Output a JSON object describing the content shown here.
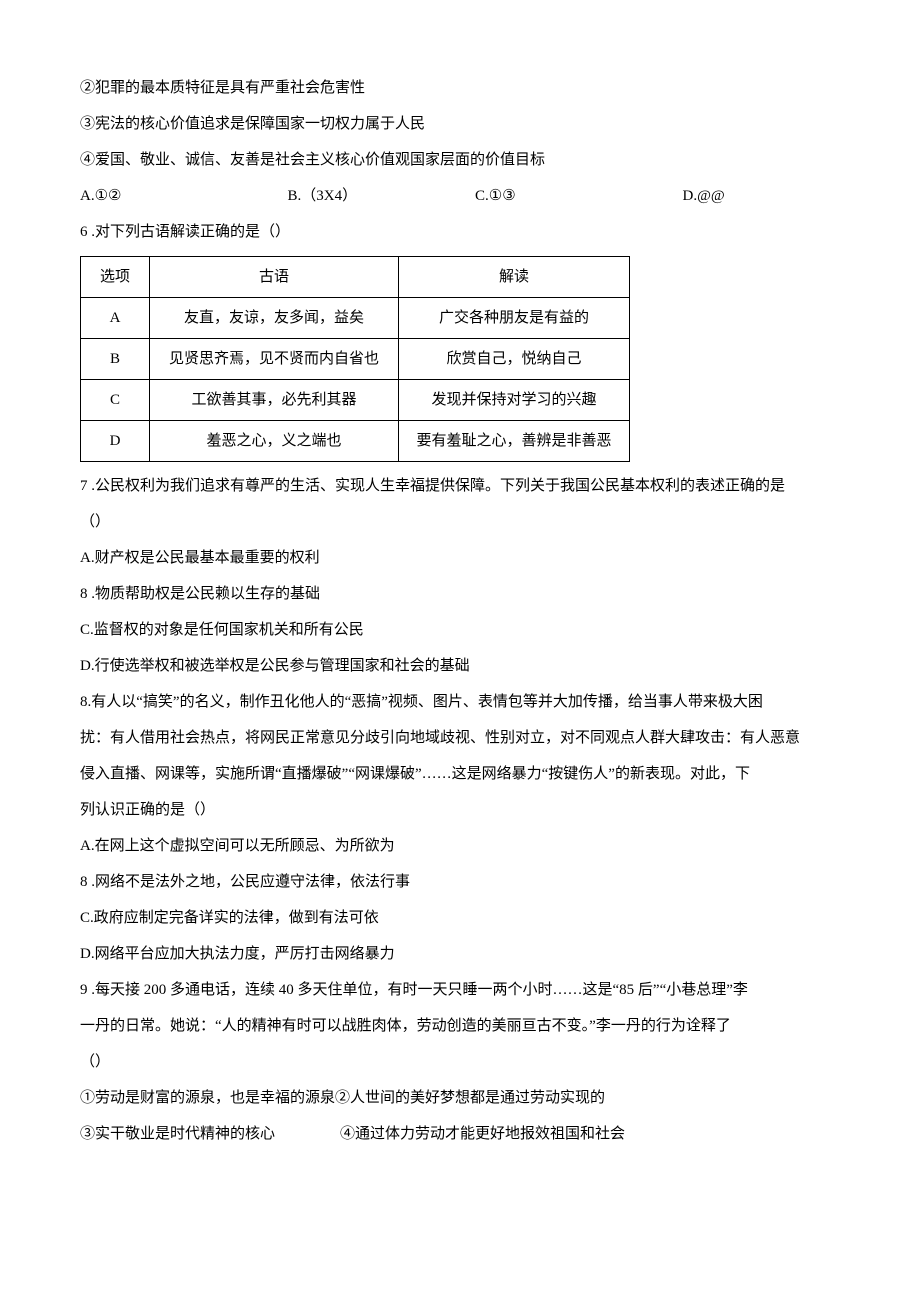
{
  "lines": {
    "l1": "②犯罪的最本质特征是具有严重社会危害性",
    "l2": "③宪法的核心价值追求是保障国家一切权力属于人民",
    "l3": "④爱国、敬业、诚信、友善是社会主义核心价值观国家层面的价值目标"
  },
  "choices5": {
    "a": "A.①②",
    "b": "B.（3X4）",
    "c": "C.①③",
    "d": "D.@@"
  },
  "q6": {
    "stem": "6 .对下列古语解读正确的是（）",
    "header": {
      "opt": "选项",
      "guyu": "古语",
      "jiedu": "解读"
    },
    "rows": [
      {
        "opt": "A",
        "guyu": "友直，友谅，友多闻，益矣",
        "jiedu": "广交各种朋友是有益的"
      },
      {
        "opt": "B",
        "guyu": "见贤思齐焉，见不贤而内自省也",
        "jiedu": "欣赏自己，悦纳自己"
      },
      {
        "opt": "C",
        "guyu": "工欲善其事，必先利其器",
        "jiedu": "发现并保持对学习的兴趣"
      },
      {
        "opt": "D",
        "guyu": "羞恶之心，义之端也",
        "jiedu": "要有羞耻之心，善辨是非善恶"
      }
    ]
  },
  "q7": {
    "stem1": "7 .公民权利为我们追求有尊严的生活、实现人生幸福提供保障。下列关于我国公民基本权利的表述正确的是",
    "stem2": "（）",
    "a": "A.财产权是公民最基本最重要的权利",
    "b": "8 .物质帮助权是公民赖以生存的基础",
    "c": "C.监督权的对象是任何国家机关和所有公民",
    "d": "D.行使选举权和被选举权是公民参与管理国家和社会的基础"
  },
  "q8": {
    "p1": "8.有人以“搞笑”的名义，制作丑化他人的“恶搞”视频、图片、表情包等并大加传播，给当事人带来极大困",
    "p2": "扰：有人借用社会热点，将网民正常意见分歧引向地域歧视、性别对立，对不同观点人群大肆攻击：有人恶意",
    "p3": "侵入直播、网课等，实施所谓“直播爆破”“网课爆破”……这是网络暴力“按键伤人”的新表现。对此，下",
    "p4": "列认识正确的是（）",
    "a": "A.在网上这个虚拟空间可以无所顾忌、为所欲为",
    "b": "8 .网络不是法外之地，公民应遵守法律，依法行事",
    "c": "C.政府应制定完备详实的法律，做到有法可依",
    "d": "D.网络平台应加大执法力度，严厉打击网络暴力"
  },
  "q9": {
    "p1": "9 .每天接 200 多通电话，连续 40 多天住单位，有时一天只睡一两个小时……这是“85 后”“小巷总理”李",
    "p2": "一丹的日常。她说：“人的精神有时可以战胜肉体，劳动创造的美丽亘古不变。”李一丹的行为诠释了",
    "p3": "（）",
    "s1": "①劳动是财富的源泉，也是幸福的源泉②人世间的美好梦想都是通过劳动实现的",
    "s3a": "③实干敬业是时代精神的核心",
    "s3b": "④通过体力劳动才能更好地报效祖国和社会"
  }
}
